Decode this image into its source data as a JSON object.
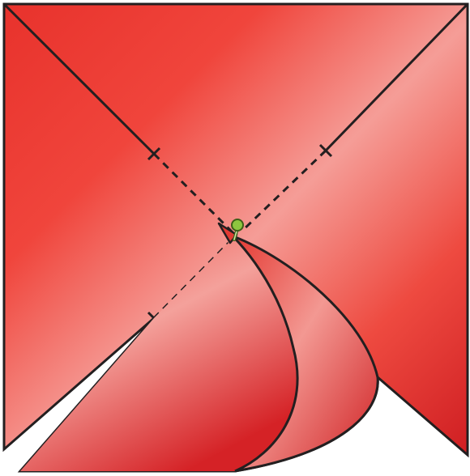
{
  "diagram": {
    "kind": "pinwheel folding step",
    "colors": {
      "paper_dark": "#cf1f22",
      "paper_mid": "#ee4038",
      "paper_light": "#f39a95",
      "background": "#ffffff",
      "line": "#231f20",
      "pin_head": "#8dc63f",
      "pin_outline": "#3d5e17"
    },
    "line_styles": {
      "cut": "solid",
      "fold_guide": "dashed"
    },
    "icons": {
      "pin": "pin-icon"
    }
  }
}
